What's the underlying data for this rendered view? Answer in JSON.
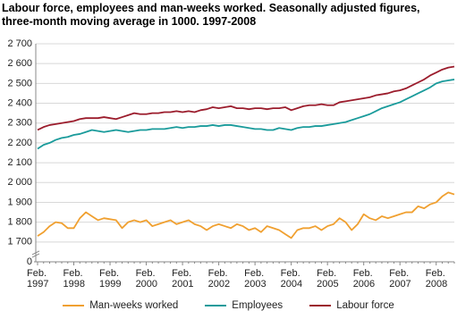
{
  "chart_data": {
    "type": "line",
    "title": "Labour force, employees and man-weeks worked. Seasonally adjusted figures, three-month moving average in 1000. 1997-2008",
    "categories": [
      "Feb. 1997",
      null,
      null,
      null,
      null,
      null,
      "Feb. 1998",
      null,
      null,
      null,
      null,
      null,
      "Feb. 1999",
      null,
      null,
      null,
      null,
      null,
      "Feb. 2000",
      null,
      null,
      null,
      null,
      null,
      "Feb. 2001",
      null,
      null,
      null,
      null,
      null,
      "Feb. 2002",
      null,
      null,
      null,
      null,
      null,
      "Feb. 2003",
      null,
      null,
      null,
      null,
      null,
      "Feb. 2004",
      null,
      null,
      null,
      null,
      null,
      "Feb. 2005",
      null,
      null,
      null,
      null,
      null,
      "Feb. 2006",
      null,
      null,
      null,
      null,
      null,
      "Feb. 2007",
      null,
      null,
      null,
      null,
      null,
      "Feb. 2008",
      null,
      null,
      null
    ],
    "series": [
      {
        "name": "Man-weeks worked",
        "color": "#f0a030",
        "values": [
          1730,
          1750,
          1780,
          1800,
          1795,
          1770,
          1770,
          1820,
          1850,
          1830,
          1810,
          1820,
          1815,
          1810,
          1770,
          1800,
          1810,
          1800,
          1810,
          1780,
          1790,
          1800,
          1810,
          1790,
          1800,
          1810,
          1790,
          1780,
          1760,
          1780,
          1790,
          1780,
          1770,
          1790,
          1780,
          1760,
          1770,
          1750,
          1780,
          1770,
          1760,
          1740,
          1720,
          1760,
          1770,
          1770,
          1780,
          1760,
          1780,
          1790,
          1820,
          1800,
          1760,
          1790,
          1840,
          1820,
          1810,
          1830,
          1820,
          1830,
          1840,
          1850,
          1850,
          1880,
          1870,
          1890,
          1900,
          1930,
          1950,
          1940
        ]
      },
      {
        "name": "Employees",
        "color": "#1a9b9b",
        "values": [
          2170,
          2190,
          2200,
          2215,
          2225,
          2230,
          2240,
          2245,
          2255,
          2265,
          2260,
          2255,
          2260,
          2265,
          2260,
          2255,
          2260,
          2265,
          2265,
          2270,
          2270,
          2270,
          2275,
          2280,
          2275,
          2280,
          2280,
          2285,
          2285,
          2290,
          2285,
          2290,
          2290,
          2285,
          2280,
          2275,
          2270,
          2270,
          2265,
          2265,
          2275,
          2270,
          2265,
          2275,
          2280,
          2280,
          2285,
          2285,
          2290,
          2295,
          2300,
          2305,
          2315,
          2325,
          2335,
          2345,
          2360,
          2375,
          2385,
          2395,
          2405,
          2420,
          2435,
          2450,
          2465,
          2480,
          2500,
          2510,
          2515,
          2520
        ]
      },
      {
        "name": "Labour force",
        "color": "#9b1c2c",
        "values": [
          2265,
          2280,
          2290,
          2295,
          2300,
          2305,
          2310,
          2320,
          2325,
          2325,
          2325,
          2330,
          2325,
          2320,
          2330,
          2340,
          2350,
          2345,
          2345,
          2350,
          2350,
          2355,
          2355,
          2360,
          2355,
          2360,
          2355,
          2365,
          2370,
          2380,
          2375,
          2380,
          2385,
          2375,
          2375,
          2370,
          2375,
          2375,
          2370,
          2375,
          2375,
          2380,
          2365,
          2375,
          2385,
          2390,
          2390,
          2395,
          2390,
          2390,
          2405,
          2410,
          2415,
          2420,
          2425,
          2430,
          2440,
          2445,
          2450,
          2460,
          2465,
          2475,
          2490,
          2505,
          2520,
          2540,
          2555,
          2570,
          2580,
          2585
        ]
      }
    ],
    "ylim": [
      0,
      2700
    ],
    "yticks": [
      0,
      {
        "value": 1700,
        "label": "1 700"
      },
      {
        "value": 1800,
        "label": "1 800"
      },
      {
        "value": 1900,
        "label": "1 900"
      },
      {
        "value": 2000,
        "label": "2 000"
      },
      {
        "value": 2100,
        "label": "2 100"
      },
      {
        "value": 2200,
        "label": "2 200"
      },
      {
        "value": 2300,
        "label": "2 300"
      },
      {
        "value": 2400,
        "label": "2 400"
      },
      {
        "value": 2500,
        "label": "2 500"
      },
      {
        "value": 2600,
        "label": "2 600"
      },
      {
        "value": 2700,
        "label": "2 700"
      }
    ],
    "axis_break": true,
    "grid": true
  }
}
